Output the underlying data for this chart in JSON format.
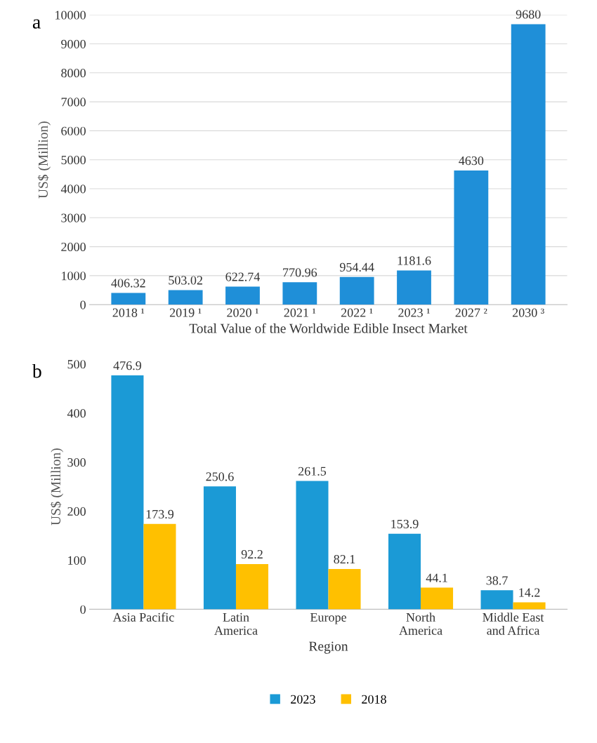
{
  "chart_data": [
    {
      "type": "bar",
      "title": "a",
      "categories": [
        "2018 ¹",
        "2019 ¹",
        "2020 ¹",
        "2021 ¹",
        "2022 ¹",
        "2023 ¹",
        "2027 ²",
        "2030 ³"
      ],
      "values": [
        406.32,
        503.02,
        622.74,
        770.96,
        954.44,
        1181.6,
        4630,
        9680
      ],
      "color": "#1f8fd8",
      "value_labels": [
        "406.32",
        "503.02",
        "622.74",
        "770.96",
        "954.44",
        "1181.6",
        "4630",
        "9680"
      ],
      "xlabel": "Total Value of the Worldwide Edible Insect Market",
      "ylabel": "US$ (Million)",
      "ylim": [
        0,
        10000
      ],
      "yticks": [
        0,
        1000,
        2000,
        3000,
        4000,
        5000,
        6000,
        7000,
        8000,
        9000,
        10000
      ],
      "grid": "y"
    },
    {
      "type": "bar",
      "title": "b",
      "categories": [
        "Asia Pacific",
        "Latin\nAmerica",
        "Europe",
        "North\nAmerica",
        "Middle East\nand Africa"
      ],
      "series": [
        {
          "name": "2023",
          "color": "#1b9ad6",
          "values": [
            476.9,
            250.6,
            261.5,
            153.9,
            38.7
          ]
        },
        {
          "name": "2018",
          "color": "#ffc000",
          "values": [
            173.9,
            92.2,
            82.1,
            44.1,
            14.2
          ]
        }
      ],
      "data_labels": true,
      "xlabel": "Region",
      "ylabel": "US$ (Million)",
      "ylim": [
        0,
        500
      ],
      "yticks": [
        0,
        100,
        200,
        300,
        400,
        500
      ],
      "grid": false,
      "legend": "bottom"
    }
  ]
}
